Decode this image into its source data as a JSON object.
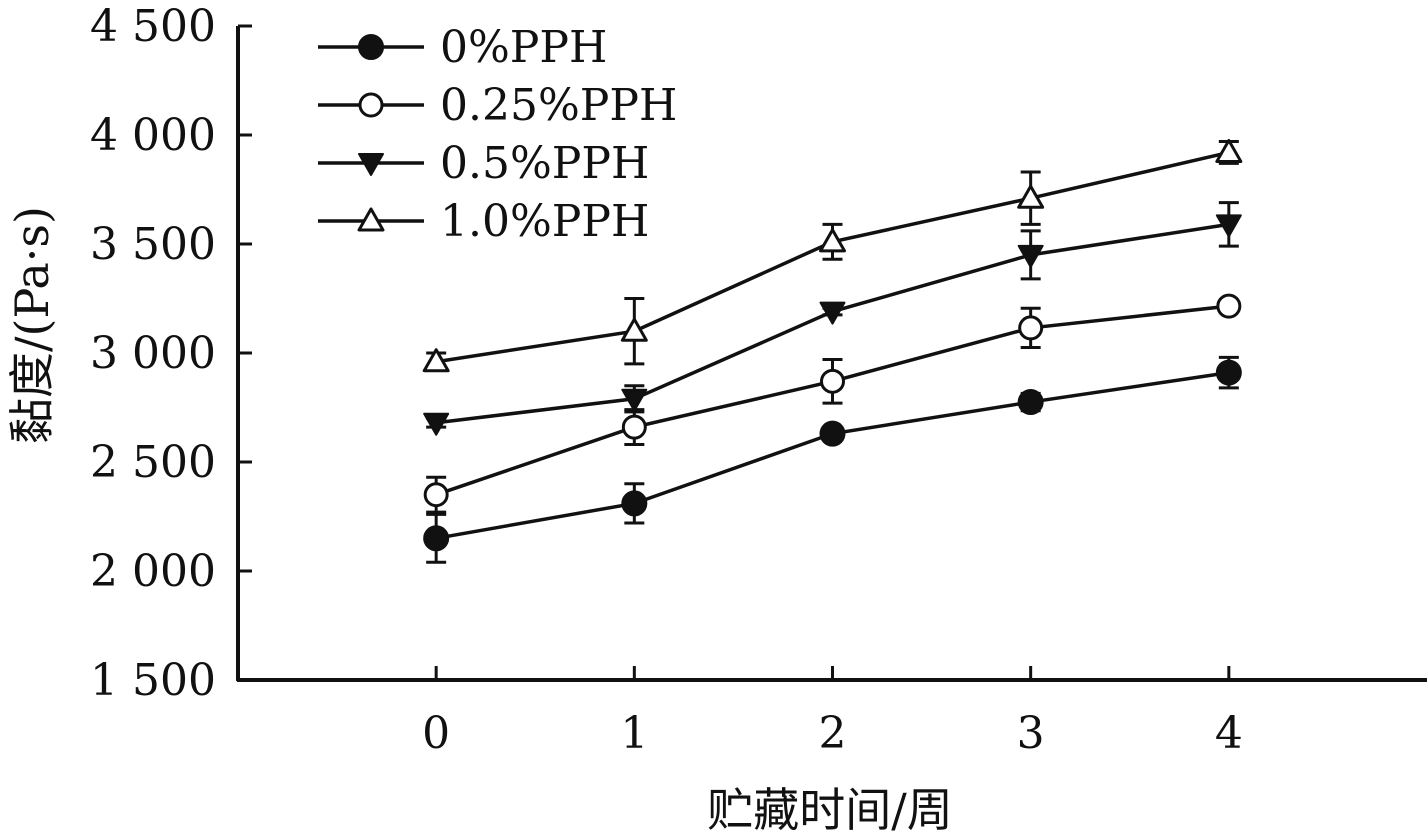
{
  "chart_data": {
    "type": "line",
    "xlabel": "贮藏时间/周",
    "ylabel": "黏度/(Pa·s)",
    "x": [
      0,
      1,
      2,
      3,
      4
    ],
    "x_tick_labels": [
      "0",
      "1",
      "2",
      "3",
      "4"
    ],
    "xlim": [
      -1,
      5
    ],
    "ylim": [
      1500,
      4500
    ],
    "y_ticks": [
      1500,
      2000,
      2500,
      3000,
      3500,
      4000,
      4500
    ],
    "y_tick_labels": [
      "1 500",
      "2 000",
      "2 500",
      "3 000",
      "3 500",
      "4 000",
      "4 500"
    ],
    "grid": false,
    "legend_position": "top-left",
    "series": [
      {
        "name": "0%PPH",
        "marker": "filled-circle",
        "values": [
          2150,
          2310,
          2630,
          2775,
          2910
        ],
        "errors": [
          110,
          90,
          30,
          40,
          70
        ]
      },
      {
        "name": "0.25%PPH",
        "marker": "open-circle",
        "values": [
          2350,
          2660,
          2870,
          3115,
          3215
        ],
        "errors": [
          80,
          80,
          100,
          90,
          25
        ]
      },
      {
        "name": "0.5%PPH",
        "marker": "filled-triangle-down",
        "values": [
          2680,
          2790,
          3190,
          3450,
          3590
        ],
        "errors": [
          20,
          60,
          15,
          110,
          100
        ]
      },
      {
        "name": "1.0%PPH",
        "marker": "open-triangle-up",
        "values": [
          2960,
          3100,
          3510,
          3710,
          3920
        ],
        "errors": [
          40,
          150,
          80,
          120,
          50
        ]
      }
    ],
    "colors": {
      "ink": "#111111",
      "background": "#ffffff"
    }
  }
}
